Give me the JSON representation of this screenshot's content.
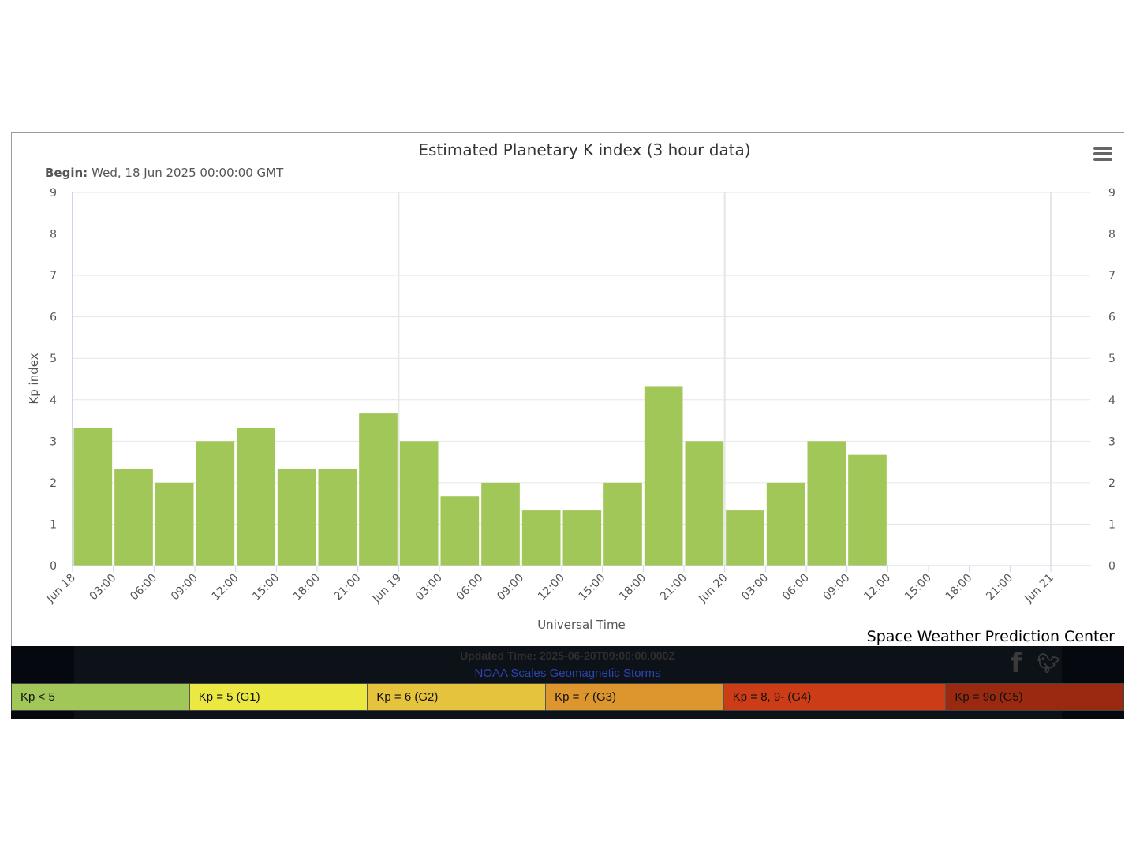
{
  "chart_data": {
    "type": "bar",
    "title": "Estimated Planetary K index (3 hour data)",
    "subtitle_label": "Begin:",
    "subtitle_value": "Wed, 18 Jun 2025 00:00:00 GMT",
    "xlabel": "Universal Time",
    "ylabel": "Kp index",
    "ylim": [
      0,
      9
    ],
    "yticks": [
      "0",
      "1",
      "2",
      "3",
      "4",
      "5",
      "6",
      "7",
      "8",
      "9"
    ],
    "grid": true,
    "bar_color": "#a0c757",
    "x_start": "2025-06-18T00:00:00Z",
    "x_end": "2025-06-21T00:00:00Z",
    "xticks": [
      "Jun 18",
      "03:00",
      "06:00",
      "09:00",
      "12:00",
      "15:00",
      "18:00",
      "21:00",
      "Jun 19",
      "03:00",
      "06:00",
      "09:00",
      "12:00",
      "15:00",
      "18:00",
      "21:00",
      "Jun 20",
      "03:00",
      "06:00",
      "09:00",
      "12:00",
      "15:00",
      "18:00",
      "21:00",
      "Jun 21"
    ],
    "x": [
      "2025-06-18T00:00Z",
      "2025-06-18T03:00Z",
      "2025-06-18T06:00Z",
      "2025-06-18T09:00Z",
      "2025-06-18T12:00Z",
      "2025-06-18T15:00Z",
      "2025-06-18T18:00Z",
      "2025-06-18T21:00Z",
      "2025-06-19T00:00Z",
      "2025-06-19T03:00Z",
      "2025-06-19T06:00Z",
      "2025-06-19T09:00Z",
      "2025-06-19T12:00Z",
      "2025-06-19T15:00Z",
      "2025-06-19T18:00Z",
      "2025-06-19T21:00Z",
      "2025-06-20T00:00Z",
      "2025-06-20T03:00Z",
      "2025-06-20T06:00Z",
      "2025-06-20T09:00Z"
    ],
    "values": [
      3.33,
      2.33,
      2.0,
      3.0,
      3.33,
      2.33,
      2.33,
      3.67,
      3.0,
      1.67,
      2.0,
      1.33,
      1.33,
      2.0,
      4.33,
      3.0,
      1.33,
      2.0,
      3.0,
      2.67
    ],
    "credit": "Space Weather Prediction Center"
  },
  "footer": {
    "updated_time": "Updated Time: 2025-06-20T09:00:00.000Z",
    "noaa_link": "NOAA Scales Geomagnetic Storms",
    "icons": [
      "facebook-icon",
      "twitter-icon"
    ]
  },
  "legend": {
    "items": [
      {
        "label": "Kp < 5",
        "color": "#a0c757"
      },
      {
        "label": "Kp = 5 (G1)",
        "color": "#ece842"
      },
      {
        "label": "Kp = 6 (G2)",
        "color": "#e6c33c"
      },
      {
        "label": "Kp = 7 (G3)",
        "color": "#dc962d"
      },
      {
        "label": "Kp = 8, 9- (G4)",
        "color": "#cc3c16"
      },
      {
        "label": "Kp = 9o (G5)",
        "color": "#9a2a0f"
      }
    ]
  }
}
